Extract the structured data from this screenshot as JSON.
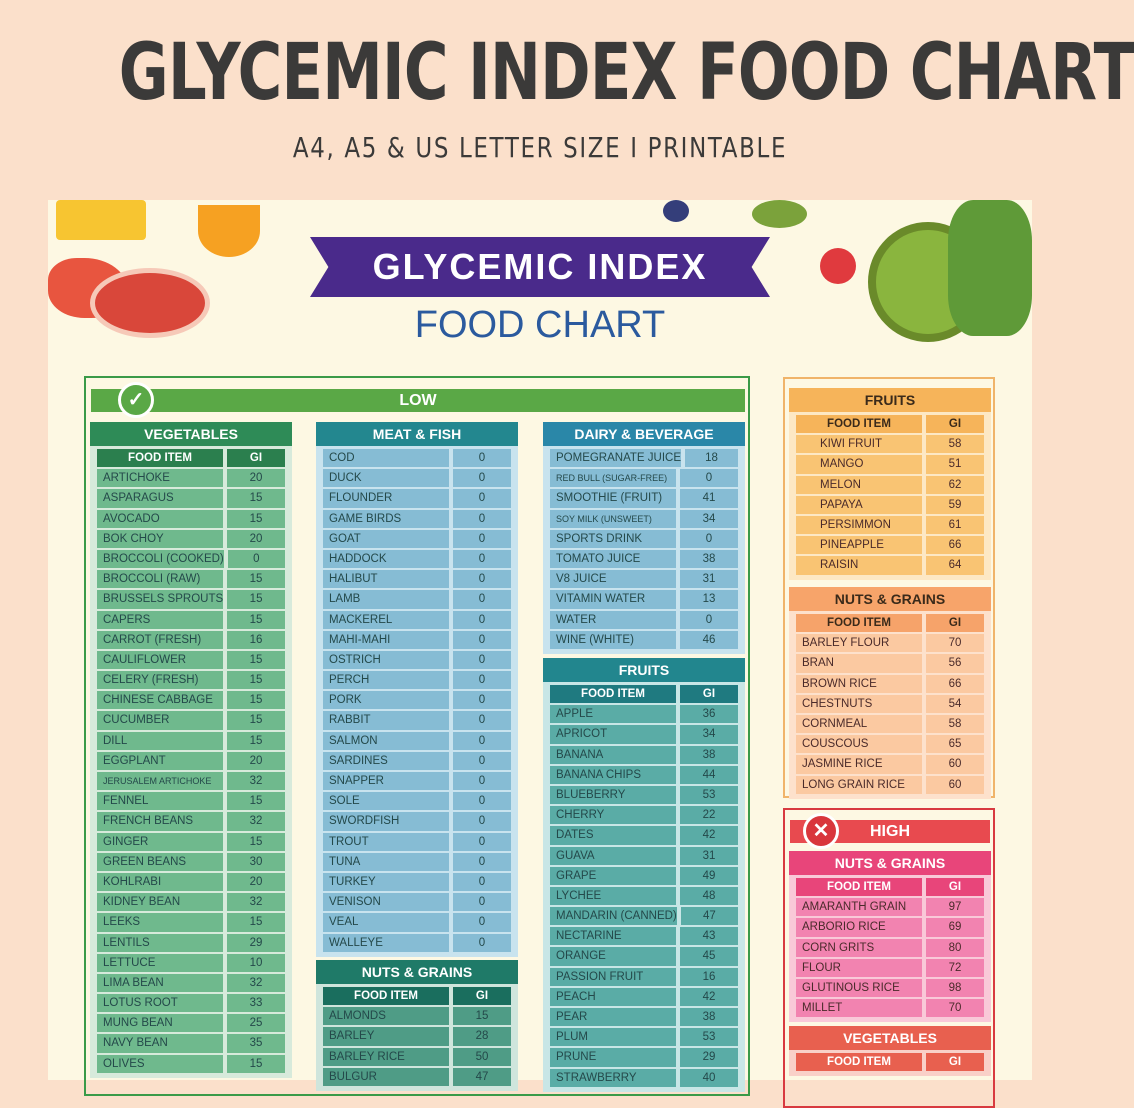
{
  "header": {
    "title": "GLYCEMIC INDEX FOOD CHART",
    "subtitle": "A4, A5 & US LETTER SIZE I PRINTABLE"
  },
  "poster": {
    "banner": "GLYCEMIC INDEX",
    "subbanner": "FOOD CHART",
    "low": {
      "label": "LOW",
      "icon": "check-icon",
      "color": "#5aa846"
    },
    "high": {
      "label": "HIGH",
      "icon": "x-icon",
      "color": "#e84a4f"
    }
  },
  "colors": {
    "background": "#fbe0cb",
    "poster": "#fdf8e3",
    "banner": "#4a2a8b",
    "low": "#5aa846",
    "high": "#e84a4f"
  },
  "tables": {
    "veg_low": {
      "title": "VEGETABLES",
      "col1": "FOOD ITEM",
      "col2": "GI",
      "rows": [
        [
          "ARTICHOKE",
          "20"
        ],
        [
          "ASPARAGUS",
          "15"
        ],
        [
          "AVOCADO",
          "15"
        ],
        [
          "BOK CHOY",
          "20"
        ],
        [
          "BROCCOLI (COOKED)",
          "0"
        ],
        [
          "BROCCOLI (RAW)",
          "15"
        ],
        [
          "BRUSSELS SPROUTS",
          "15"
        ],
        [
          "CAPERS",
          "15"
        ],
        [
          "CARROT (FRESH)",
          "16"
        ],
        [
          "CAULIFLOWER",
          "15"
        ],
        [
          "CELERY (FRESH)",
          "15"
        ],
        [
          "CHINESE CABBAGE",
          "15"
        ],
        [
          "CUCUMBER",
          "15"
        ],
        [
          "DILL",
          "15"
        ],
        [
          "EGGPLANT",
          "20"
        ],
        [
          "JERUSALEM ARTICHOKE",
          "32"
        ],
        [
          "FENNEL",
          "15"
        ],
        [
          "FRENCH BEANS",
          "32"
        ],
        [
          "GINGER",
          "15"
        ],
        [
          "GREEN BEANS",
          "30"
        ],
        [
          "KOHLRABI",
          "20"
        ],
        [
          "KIDNEY BEAN",
          "32"
        ],
        [
          "LEEKS",
          "15"
        ],
        [
          "LENTILS",
          "29"
        ],
        [
          "LETTUCE",
          "10"
        ],
        [
          "LIMA BEAN",
          "32"
        ],
        [
          "LOTUS ROOT",
          "33"
        ],
        [
          "MUNG BEAN",
          "25"
        ],
        [
          "NAVY BEAN",
          "35"
        ],
        [
          "OLIVES",
          "15"
        ]
      ]
    },
    "meat_low": {
      "title": "MEAT & FISH",
      "rows": [
        [
          "COD",
          "0"
        ],
        [
          "DUCK",
          "0"
        ],
        [
          "FLOUNDER",
          "0"
        ],
        [
          "GAME BIRDS",
          "0"
        ],
        [
          "GOAT",
          "0"
        ],
        [
          "HADDOCK",
          "0"
        ],
        [
          "HALIBUT",
          "0"
        ],
        [
          "LAMB",
          "0"
        ],
        [
          "MACKEREL",
          "0"
        ],
        [
          "MAHI-MAHI",
          "0"
        ],
        [
          "OSTRICH",
          "0"
        ],
        [
          "PERCH",
          "0"
        ],
        [
          "PORK",
          "0"
        ],
        [
          "RABBIT",
          "0"
        ],
        [
          "SALMON",
          "0"
        ],
        [
          "SARDINES",
          "0"
        ],
        [
          "SNAPPER",
          "0"
        ],
        [
          "SOLE",
          "0"
        ],
        [
          "SWORDFISH",
          "0"
        ],
        [
          "TROUT",
          "0"
        ],
        [
          "TUNA",
          "0"
        ],
        [
          "TURKEY",
          "0"
        ],
        [
          "VENISON",
          "0"
        ],
        [
          "VEAL",
          "0"
        ],
        [
          "WALLEYE",
          "0"
        ]
      ]
    },
    "nuts_low": {
      "title": "NUTS & GRAINS",
      "col1": "FOOD ITEM",
      "col2": "GI",
      "rows": [
        [
          "ALMONDS",
          "15"
        ],
        [
          "BARLEY",
          "28"
        ],
        [
          "BARLEY RICE",
          "50"
        ],
        [
          "BULGUR",
          "47"
        ]
      ]
    },
    "dairy_low": {
      "title": "DAIRY & BEVERAGE",
      "rows": [
        [
          "POMEGRANATE JUICE",
          "18"
        ],
        [
          "RED BULL (SUGAR-FREE)",
          "0"
        ],
        [
          "SMOOTHIE (FRUIT)",
          "41"
        ],
        [
          "SOY MILK (UNSWEET)",
          "34"
        ],
        [
          "SPORTS DRINK",
          "0"
        ],
        [
          "TOMATO JUICE",
          "38"
        ],
        [
          "V8 JUICE",
          "31"
        ],
        [
          "VITAMIN WATER",
          "13"
        ],
        [
          "WATER",
          "0"
        ],
        [
          "WINE (WHITE)",
          "46"
        ]
      ]
    },
    "fruits_low": {
      "title": "FRUITS",
      "col1": "FOOD ITEM",
      "col2": "GI",
      "rows": [
        [
          "APPLE",
          "36"
        ],
        [
          "APRICOT",
          "34"
        ],
        [
          "BANANA",
          "38"
        ],
        [
          "BANANA CHIPS",
          "44"
        ],
        [
          "BLUEBERRY",
          "53"
        ],
        [
          "CHERRY",
          "22"
        ],
        [
          "DATES",
          "42"
        ],
        [
          "GUAVA",
          "31"
        ],
        [
          "GRAPE",
          "49"
        ],
        [
          "LYCHEE",
          "48"
        ],
        [
          "MANDARIN (CANNED)",
          "47"
        ],
        [
          "NECTARINE",
          "43"
        ],
        [
          "ORANGE",
          "45"
        ],
        [
          "PASSION FRUIT",
          "16"
        ],
        [
          "PEACH",
          "42"
        ],
        [
          "PEAR",
          "38"
        ],
        [
          "PLUM",
          "53"
        ],
        [
          "PRUNE",
          "29"
        ],
        [
          "STRAWBERRY",
          "40"
        ]
      ]
    },
    "fruits_med": {
      "title": "FRUITS",
      "col1": "FOOD ITEM",
      "col2": "GI",
      "rows": [
        [
          "KIWI FRUIT",
          "58"
        ],
        [
          "MANGO",
          "51"
        ],
        [
          "MELON",
          "62"
        ],
        [
          "PAPAYA",
          "59"
        ],
        [
          "PERSIMMON",
          "61"
        ],
        [
          "PINEAPPLE",
          "66"
        ],
        [
          "RAISIN",
          "64"
        ]
      ]
    },
    "nuts_med": {
      "title": "NUTS & GRAINS",
      "col1": "FOOD ITEM",
      "col2": "GI",
      "rows": [
        [
          "BARLEY FLOUR",
          "70"
        ],
        [
          "BRAN",
          "56"
        ],
        [
          "BROWN RICE",
          "66"
        ],
        [
          "CHESTNUTS",
          "54"
        ],
        [
          "CORNMEAL",
          "58"
        ],
        [
          "COUSCOUS",
          "65"
        ],
        [
          "JASMINE RICE",
          "60"
        ],
        [
          "LONG GRAIN RICE",
          "60"
        ]
      ]
    },
    "nuts_high": {
      "title": "NUTS & GRAINS",
      "col1": "FOOD ITEM",
      "col2": "GI",
      "rows": [
        [
          "AMARANTH GRAIN",
          "97"
        ],
        [
          "ARBORIO RICE",
          "69"
        ],
        [
          "CORN GRITS",
          "80"
        ],
        [
          "FLOUR",
          "72"
        ],
        [
          "GLUTINOUS RICE",
          "98"
        ],
        [
          "MILLET",
          "70"
        ]
      ]
    },
    "veg_high": {
      "title": "VEGETABLES",
      "col1": "FOOD ITEM",
      "col2": "GI",
      "rows": []
    }
  }
}
